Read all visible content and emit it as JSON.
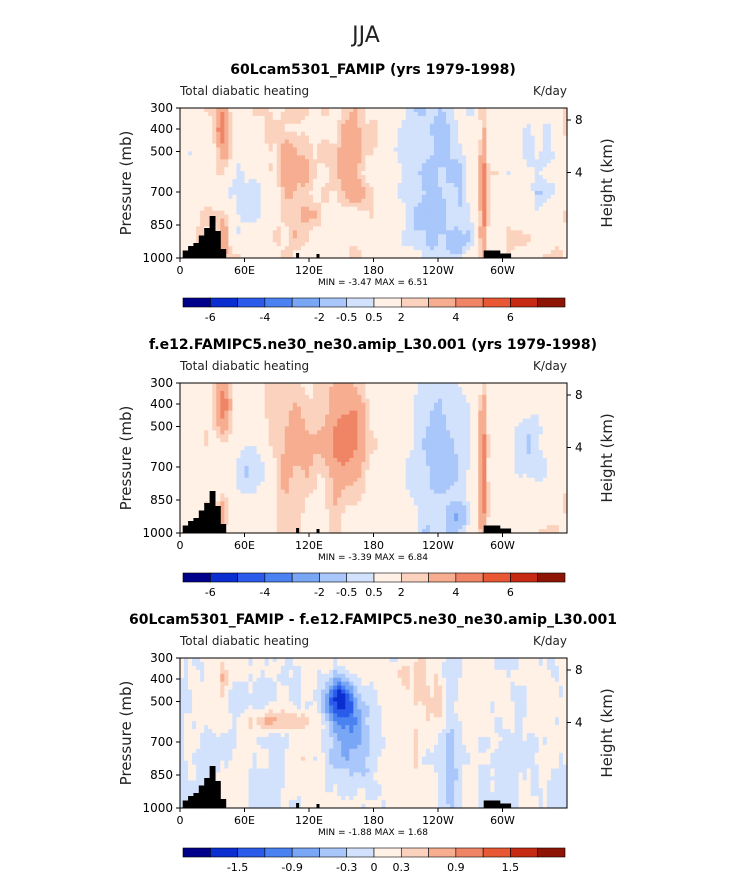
{
  "page": {
    "main_title": "JJA"
  },
  "colors": {
    "scale": [
      "#00008b",
      "#0a2ecf",
      "#2a5bea",
      "#4a82f2",
      "#7aa6f6",
      "#a9c7fa",
      "#d2e2fc",
      "#fff1e6",
      "#fbd2bd",
      "#f6ad90",
      "#f08566",
      "#e95834",
      "#c62a12",
      "#8e1405"
    ],
    "terrain": "#000000"
  },
  "chart_data": [
    {
      "type": "heatmap",
      "title": "60Lcam5301_FAMIP (yrs 1979-1998)",
      "left_label": "Total diabatic heating",
      "right_label": "K/day",
      "ylabel": "Pressure (mb)",
      "y2label": "Height (km)",
      "y_ticks": [
        "300",
        "400",
        "500",
        "700",
        "850",
        "1000"
      ],
      "y2_ticks": [
        "8",
        "4"
      ],
      "x_ticks": [
        "0",
        "60E",
        "120E",
        "180",
        "120W",
        "60W"
      ],
      "stats": "MIN =   -3.47   MAX =    6.51",
      "min": -3.47,
      "max": 6.51,
      "colorbar_labels": [
        "-6",
        "-4",
        "-2",
        "-0.5",
        "0.5",
        "2",
        "4",
        "6"
      ],
      "levels": [
        -7,
        -6,
        -5,
        -4,
        -3,
        -2,
        -1,
        -0.5,
        0.5,
        1,
        2,
        3,
        4,
        5,
        6,
        7
      ]
    },
    {
      "type": "heatmap",
      "title": "f.e12.FAMIPC5.ne30_ne30.amip_L30.001 (yrs 1979-1998)",
      "left_label": "Total diabatic heating",
      "right_label": "K/day",
      "ylabel": "Pressure (mb)",
      "y2label": "Height (km)",
      "y_ticks": [
        "300",
        "400",
        "500",
        "700",
        "850",
        "1000"
      ],
      "y2_ticks": [
        "8",
        "4"
      ],
      "x_ticks": [
        "0",
        "60E",
        "120E",
        "180",
        "120W",
        "60W"
      ],
      "stats": "MIN =   -3.39   MAX =    6.84",
      "min": -3.39,
      "max": 6.84,
      "colorbar_labels": [
        "-6",
        "-4",
        "-2",
        "-0.5",
        "0.5",
        "2",
        "4",
        "6"
      ],
      "levels": [
        -7,
        -6,
        -5,
        -4,
        -3,
        -2,
        -1,
        -0.5,
        0.5,
        1,
        2,
        3,
        4,
        5,
        6,
        7
      ]
    },
    {
      "type": "heatmap",
      "title": "60Lcam5301_FAMIP - f.e12.FAMIPC5.ne30_ne30.amip_L30.001",
      "left_label": "Total diabatic heating",
      "right_label": "K/day",
      "ylabel": "Pressure (mb)",
      "y2label": "Height (km)",
      "y_ticks": [
        "300",
        "400",
        "500",
        "700",
        "850",
        "1000"
      ],
      "y2_ticks": [
        "8",
        "4"
      ],
      "x_ticks": [
        "0",
        "60E",
        "120E",
        "180",
        "120W",
        "60W"
      ],
      "stats": "MIN =   -1.88   MAX =    1.68",
      "min": -1.88,
      "max": 1.68,
      "colorbar_labels": [
        "-1.5",
        "-0.9",
        "-0.3",
        "0",
        "0.3",
        "0.9",
        "1.5"
      ],
      "levels": [
        -2.1,
        -1.8,
        -1.5,
        -1.2,
        -0.9,
        -0.6,
        -0.3,
        0,
        0.3,
        0.6,
        0.9,
        1.2,
        1.5,
        1.8,
        2.1
      ]
    }
  ]
}
